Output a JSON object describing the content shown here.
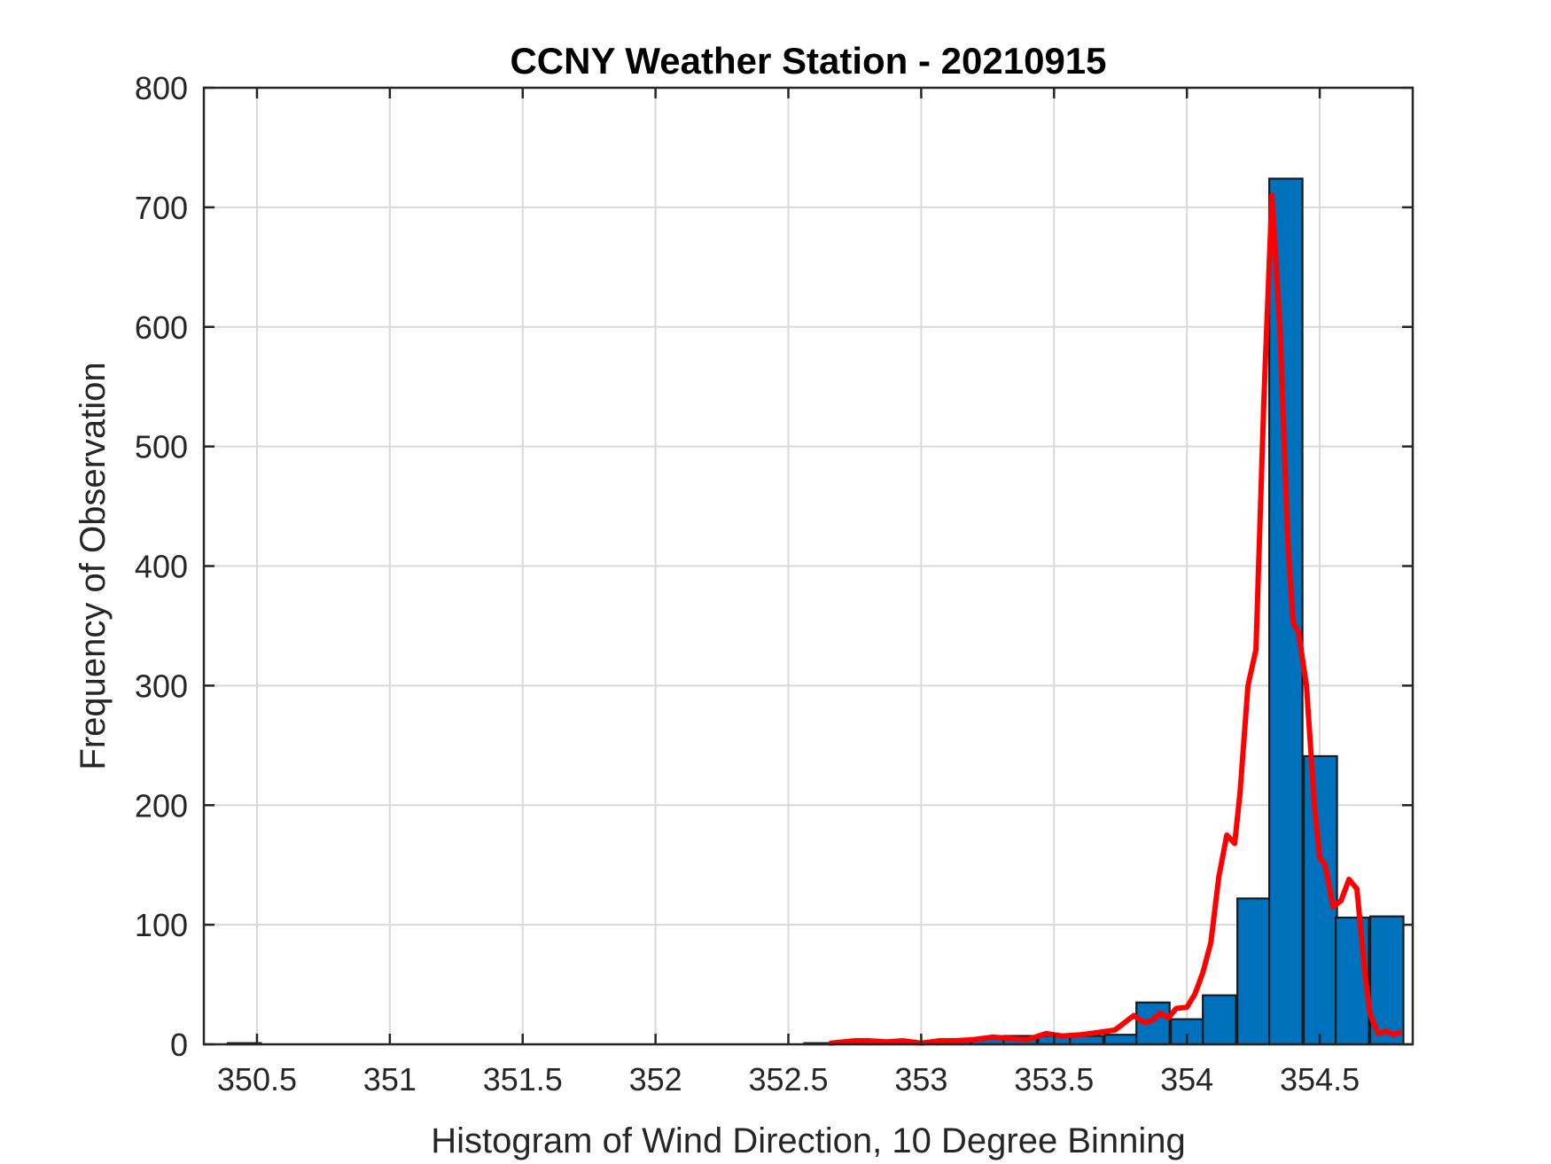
{
  "chart_data": {
    "type": "bar",
    "title": "CCNY Weather Station - 20210915",
    "xlabel": "Histogram of Wind Direction, 10 Degree Binning",
    "ylabel": "Frequency of Observation",
    "xlim": [
      350.3,
      354.85
    ],
    "ylim": [
      0,
      800
    ],
    "xticks": [
      350.5,
      351,
      351.5,
      352,
      352.5,
      353,
      353.5,
      354,
      354.5
    ],
    "xtick_labels": [
      "350.5",
      "351",
      "351.5",
      "352",
      "352.5",
      "353",
      "353.5",
      "354",
      "354.5"
    ],
    "yticks": [
      0,
      100,
      200,
      300,
      400,
      500,
      600,
      700,
      800
    ],
    "ytick_labels": [
      "0",
      "100",
      "200",
      "300",
      "400",
      "500",
      "600",
      "700",
      "800"
    ],
    "grid": true,
    "bar_color": "#0072BD",
    "line_color": "#FF0000",
    "series": [
      {
        "type": "histogram",
        "bin_width": 0.125,
        "bins": [
          {
            "x0": 350.39,
            "value": 1
          },
          {
            "x0": 352.56,
            "value": 1
          },
          {
            "x0": 352.69,
            "value": 1
          },
          {
            "x0": 352.81,
            "value": 2
          },
          {
            "x0": 352.94,
            "value": 1
          },
          {
            "x0": 353.06,
            "value": 3
          },
          {
            "x0": 353.19,
            "value": 5
          },
          {
            "x0": 353.31,
            "value": 7
          },
          {
            "x0": 353.44,
            "value": 7
          },
          {
            "x0": 353.56,
            "value": 7
          },
          {
            "x0": 353.69,
            "value": 8
          },
          {
            "x0": 353.81,
            "value": 35
          },
          {
            "x0": 353.94,
            "value": 21
          },
          {
            "x0": 354.06,
            "value": 41
          },
          {
            "x0": 354.19,
            "value": 122
          },
          {
            "x0": 354.31,
            "value": 724
          },
          {
            "x0": 354.44,
            "value": 241
          },
          {
            "x0": 354.56,
            "value": 106
          },
          {
            "x0": 354.69,
            "value": 107
          }
        ]
      },
      {
        "type": "line",
        "x": [
          352.66,
          352.75,
          352.8,
          352.87,
          352.93,
          353.0,
          353.07,
          353.13,
          353.2,
          353.27,
          353.33,
          353.4,
          353.47,
          353.53,
          353.6,
          353.67,
          353.73,
          353.8,
          353.84,
          353.87,
          353.9,
          353.93,
          353.96,
          354.0,
          354.03,
          354.06,
          354.09,
          354.12,
          354.15,
          354.18,
          354.2,
          354.23,
          354.26,
          354.29,
          354.32,
          354.35,
          354.38,
          354.4,
          354.42,
          354.45,
          354.48,
          354.5,
          354.52,
          354.55,
          354.58,
          354.61,
          354.64,
          354.67,
          354.69,
          354.72,
          354.75,
          354.78,
          354.8
        ],
        "y": [
          1,
          3,
          3,
          2,
          3,
          1,
          3,
          3,
          4,
          6,
          5,
          4,
          9,
          7,
          8,
          10,
          12,
          24,
          18,
          20,
          26,
          22,
          30,
          31,
          42,
          60,
          85,
          140,
          175,
          168,
          210,
          300,
          330,
          540,
          710,
          600,
          420,
          352,
          345,
          300,
          200,
          156,
          150,
          115,
          120,
          138,
          130,
          60,
          25,
          9,
          11,
          8,
          10
        ]
      }
    ]
  }
}
